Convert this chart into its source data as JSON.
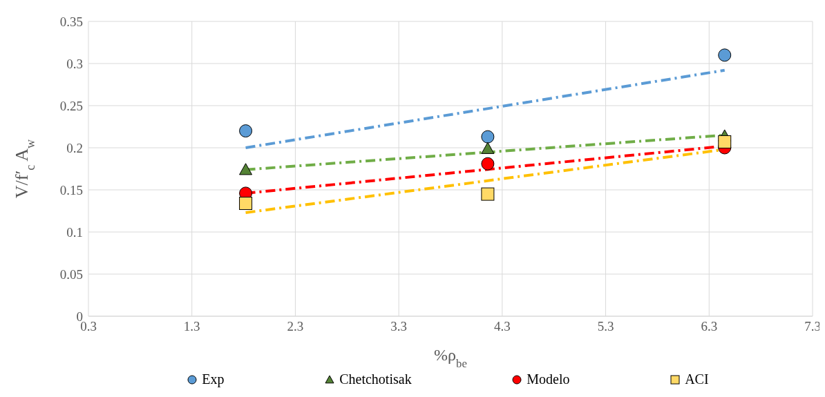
{
  "chart_data": {
    "type": "scatter",
    "xlabel": "%ρ$_{be}$",
    "ylabel": "V/f′$_{c}$ A$_{w}$",
    "xlim": [
      0.3,
      7.3
    ],
    "xticks": [
      0.3,
      1.3,
      2.3,
      3.3,
      4.3,
      5.3,
      6.3,
      7.3
    ],
    "ylim": [
      0,
      0.35
    ],
    "yticks": [
      0,
      0.05,
      0.1,
      0.15,
      0.2,
      0.25,
      0.3,
      0.35
    ],
    "grid": true,
    "legend": "bottom",
    "series": [
      {
        "name": "Exp",
        "color": "#5b9bd5",
        "marker": "circle",
        "x": [
          1.82,
          4.16,
          6.45
        ],
        "values": [
          0.22,
          0.213,
          0.31
        ]
      },
      {
        "name": "Chetchotisak",
        "color": "#548235",
        "marker": "triangle",
        "x": [
          1.82,
          4.16,
          6.45
        ],
        "values": [
          0.174,
          0.199,
          0.214
        ]
      },
      {
        "name": "Modelo",
        "color": "#ff0000",
        "marker": "circle",
        "x": [
          1.82,
          4.16,
          6.45
        ],
        "values": [
          0.146,
          0.181,
          0.2
        ]
      },
      {
        "name": "ACI",
        "color": "#ffd966",
        "marker": "square",
        "x": [
          1.82,
          4.16,
          6.45
        ],
        "values": [
          0.134,
          0.145,
          0.207
        ]
      },
      {
        "type": "line",
        "color": "#5b9bd5",
        "line_style": "dashed",
        "marker": "none",
        "x": [
          1.82,
          6.45
        ],
        "values": [
          0.2,
          0.292
        ]
      },
      {
        "type": "line",
        "color": "#70ad47",
        "line_style": "dashed",
        "marker": "none",
        "x": [
          1.82,
          6.45
        ],
        "values": [
          0.174,
          0.215
        ]
      },
      {
        "type": "line",
        "color": "#ff0000",
        "line_style": "dashed",
        "marker": "none",
        "x": [
          1.82,
          6.45
        ],
        "values": [
          0.146,
          0.202
        ]
      },
      {
        "type": "line",
        "color": "#ffc000",
        "line_style": "dashed",
        "marker": "none",
        "x": [
          1.82,
          6.45
        ],
        "values": [
          0.123,
          0.198
        ]
      }
    ]
  }
}
